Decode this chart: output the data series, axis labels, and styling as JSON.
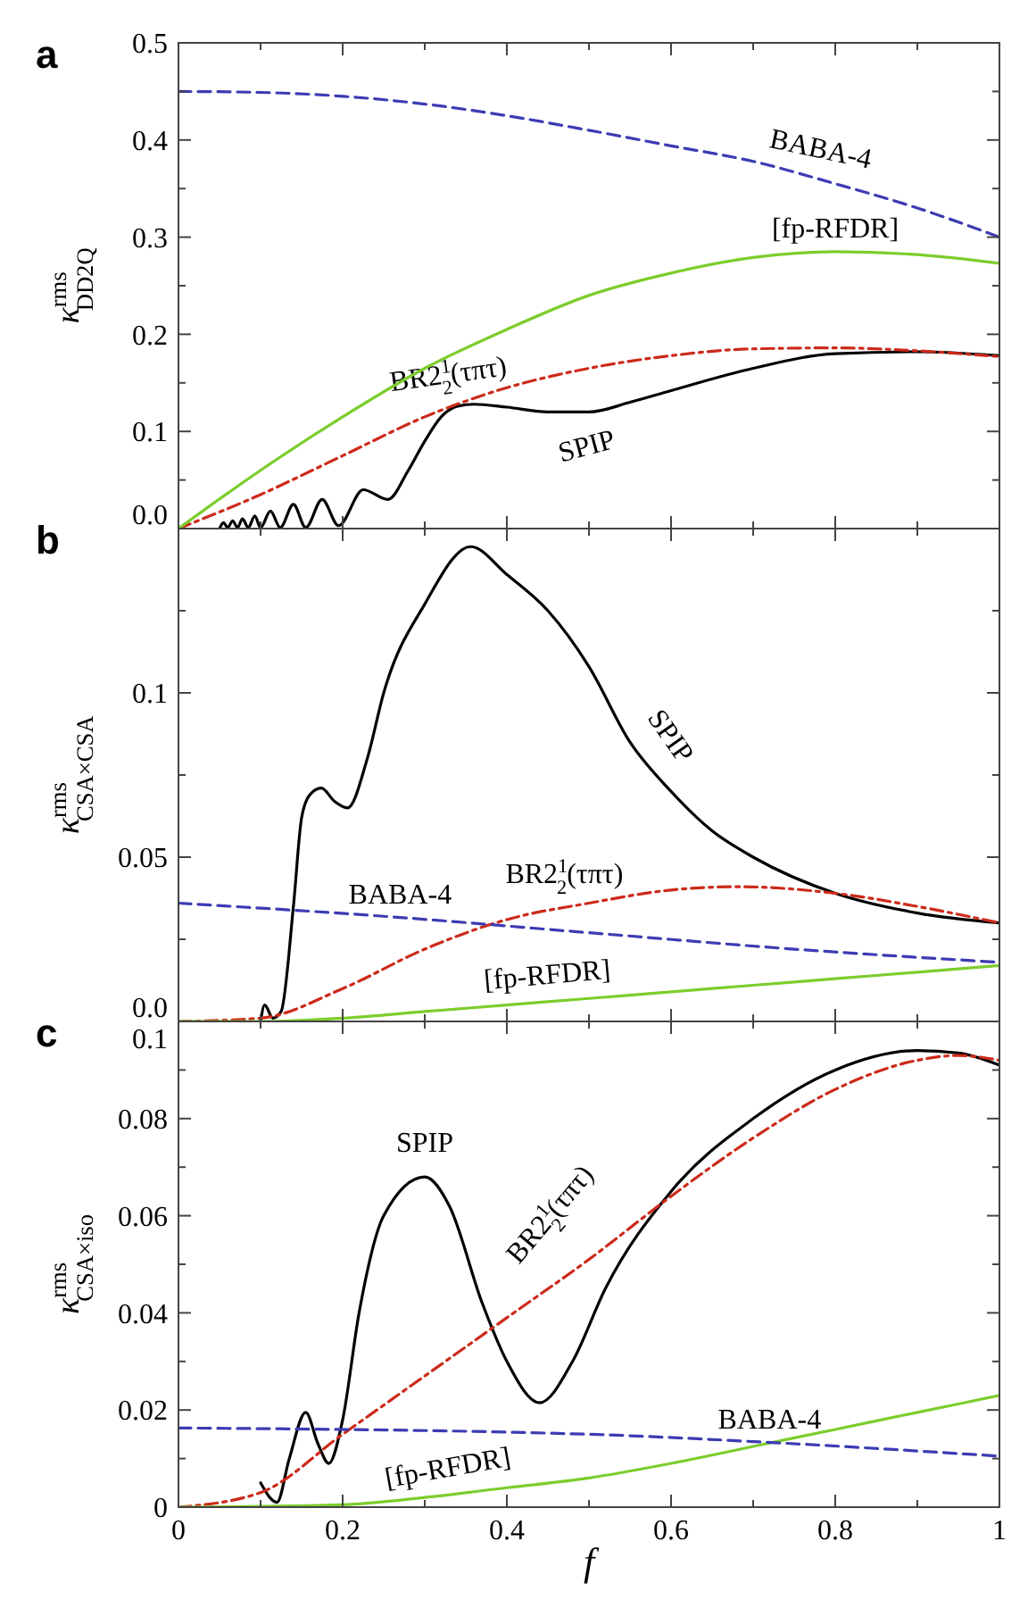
{
  "chart_data": [
    {
      "type": "line",
      "title": "a",
      "ylabel": "κ$^{rms}$$_{DD2Q}$",
      "xlim": [
        0,
        1
      ],
      "ylim": [
        0,
        0.5
      ],
      "tick_labels": "y",
      "xticks": [
        0,
        {
          "value": 0.1,
          "label": null
        },
        0.2,
        {
          "value": 0.3,
          "label": null
        },
        0.4,
        {
          "value": 0.5,
          "label": null
        },
        0.6,
        {
          "value": 0.7,
          "label": null
        },
        0.8,
        {
          "value": 0.9,
          "label": null
        },
        1
      ],
      "yticks": [
        {
          "value": 0,
          "label": "0.0"
        },
        {
          "value": 0.05,
          "label": null
        },
        0.1,
        {
          "value": 0.15,
          "label": null
        },
        0.2,
        {
          "value": 0.25,
          "label": null
        },
        0.3,
        {
          "value": 0.35,
          "label": null
        },
        0.4,
        {
          "value": 0.45,
          "label": null
        },
        0.5
      ],
      "series": [
        {
          "name": "SPIP",
          "color": "#000000",
          "line_style": "solid",
          "x": [
            0.05,
            0.055,
            0.06,
            0.066,
            0.072,
            0.078,
            0.085,
            0.093,
            0.1,
            0.112,
            0.124,
            0.14,
            0.155,
            0.175,
            0.195,
            0.225,
            0.255,
            0.28,
            0.3,
            0.32,
            0.34,
            0.36,
            0.4,
            0.45,
            0.5,
            0.55,
            0.6,
            0.7,
            0.8,
            0.9,
            1
          ],
          "values": [
            0,
            0.006,
            0.001,
            0.008,
            0.001,
            0.01,
            0.001,
            0.013,
            0.001,
            0.018,
            0.001,
            0.025,
            0.001,
            0.03,
            0.003,
            0.04,
            0.03,
            0.06,
            0.09,
            0.115,
            0.126,
            0.128,
            0.125,
            0.12,
            0.12,
            0.13,
            0.142,
            0.165,
            0.18,
            0.182,
            0.178
          ]
        },
        {
          "name": "BR2$^{1}$$_{2}$(τπτ)",
          "color": "#cc2a1a",
          "line_style": "dashdot",
          "x": [
            0,
            0.1,
            0.2,
            0.3,
            0.4,
            0.5,
            0.6,
            0.7,
            0.8,
            0.9,
            1
          ],
          "values": [
            0,
            0.035,
            0.075,
            0.115,
            0.145,
            0.165,
            0.178,
            0.185,
            0.186,
            0.183,
            0.177
          ]
        },
        {
          "name": "[fp-RFDR]",
          "color": "#7ccd2c",
          "line_style": "solid",
          "x": [
            0,
            0.1,
            0.2,
            0.3,
            0.4,
            0.5,
            0.6,
            0.7,
            0.8,
            0.9,
            1
          ],
          "values": [
            0,
            0.06,
            0.115,
            0.165,
            0.205,
            0.24,
            0.263,
            0.279,
            0.285,
            0.282,
            0.273
          ]
        },
        {
          "name": "BABA-4",
          "color": "#3c3cb4",
          "line_style": "dashed",
          "x": [
            0,
            0.1,
            0.2,
            0.3,
            0.4,
            0.5,
            0.6,
            0.7,
            0.8,
            0.9,
            1
          ],
          "values": [
            0.45,
            0.449,
            0.445,
            0.437,
            0.425,
            0.41,
            0.394,
            0.378,
            0.355,
            0.33,
            0.3
          ]
        }
      ]
    },
    {
      "type": "line",
      "title": "b",
      "ylabel": "κ$^{rms}$$_{CSA×CSA}$",
      "xlim": [
        0,
        1
      ],
      "ylim": [
        0,
        0.15
      ],
      "tick_labels": "y",
      "xticks": [
        0,
        {
          "value": 0.1,
          "label": null
        },
        0.2,
        {
          "value": 0.3,
          "label": null
        },
        0.4,
        {
          "value": 0.5,
          "label": null
        },
        0.6,
        {
          "value": 0.7,
          "label": null
        },
        0.8,
        {
          "value": 0.9,
          "label": null
        },
        1
      ],
      "yticks": [
        {
          "value": 0,
          "label": "0.0"
        },
        {
          "value": 0.025,
          "label": null
        },
        0.05,
        {
          "value": 0.075,
          "label": null
        },
        0.1,
        {
          "value": 0.125,
          "label": null
        }
      ],
      "series": [
        {
          "name": "SPIP",
          "color": "#000000",
          "line_style": "solid",
          "x": [
            0.1,
            0.105,
            0.115,
            0.125,
            0.14,
            0.15,
            0.16,
            0.174,
            0.19,
            0.206,
            0.23,
            0.25,
            0.3,
            0.356,
            0.4,
            0.45,
            0.5,
            0.55,
            0.6,
            0.65,
            0.7,
            0.8,
            0.9,
            1
          ],
          "values": [
            0,
            0.005,
            0.001,
            0.003,
            0.035,
            0.062,
            0.069,
            0.071,
            0.067,
            0.065,
            0.08,
            0.1,
            0.127,
            0.1445,
            0.136,
            0.125,
            0.108,
            0.085,
            0.07,
            0.058,
            0.05,
            0.039,
            0.033,
            0.03
          ]
        },
        {
          "name": "BR2$^{1}$$_{2}$(τπτ)",
          "color": "#cc2a1a",
          "line_style": "dashdot",
          "x": [
            0,
            0.1,
            0.2,
            0.3,
            0.4,
            0.5,
            0.6,
            0.68,
            0.8,
            0.9,
            1
          ],
          "values": [
            0,
            0.001,
            0.01,
            0.022,
            0.031,
            0.036,
            0.04,
            0.041,
            0.039,
            0.035,
            0.03
          ]
        },
        {
          "name": "[fp-RFDR]",
          "color": "#7ccd2c",
          "line_style": "solid",
          "x": [
            0,
            0.1,
            0.2,
            0.3,
            0.4,
            0.5,
            0.6,
            0.7,
            0.8,
            0.9,
            1
          ],
          "values": [
            0,
            0,
            0.001,
            0.003,
            0.005,
            0.007,
            0.009,
            0.011,
            0.013,
            0.015,
            0.017
          ]
        },
        {
          "name": "BABA-4",
          "color": "#3c3cb4",
          "line_style": "dashed",
          "x": [
            0,
            0.25,
            0.5,
            0.75,
            1
          ],
          "values": [
            0.036,
            0.032,
            0.027,
            0.022,
            0.018
          ]
        }
      ]
    },
    {
      "type": "line",
      "title": "c",
      "ylabel": "κ$^{rms}$$_{CSA×iso}$",
      "xlabel": "f",
      "xlim": [
        0,
        1
      ],
      "ylim": [
        0,
        0.1
      ],
      "xticks": [
        0,
        {
          "value": 0.1,
          "label": null
        },
        0.2,
        {
          "value": 0.3,
          "label": null
        },
        0.4,
        {
          "value": 0.5,
          "label": null
        },
        0.6,
        {
          "value": 0.7,
          "label": null
        },
        0.8,
        {
          "value": 0.9,
          "label": null
        },
        1
      ],
      "yticks": [
        0,
        {
          "value": 0.01,
          "label": null
        },
        0.02,
        {
          "value": 0.03,
          "label": null
        },
        0.04,
        {
          "value": 0.05,
          "label": null
        },
        0.06,
        {
          "value": 0.07,
          "label": null
        },
        0.08,
        {
          "value": 0.09,
          "label": null
        },
        0.1
      ],
      "series": [
        {
          "name": "SPIP",
          "color": "#000000",
          "line_style": "solid",
          "x": [
            0.1,
            0.12,
            0.135,
            0.155,
            0.17,
            0.183,
            0.2,
            0.22,
            0.25,
            0.3,
            0.33,
            0.37,
            0.4,
            0.44,
            0.48,
            0.52,
            0.6,
            0.7,
            0.8,
            0.9,
            0.95,
            1
          ],
          "values": [
            0.005,
            0.001,
            0.01,
            0.0195,
            0.013,
            0.009,
            0.018,
            0.04,
            0.06,
            0.068,
            0.062,
            0.042,
            0.03,
            0.0215,
            0.03,
            0.045,
            0.065,
            0.08,
            0.09,
            0.094,
            0.0935,
            0.091
          ]
        },
        {
          "name": "BR2$^{1}$$_{2}$(τπτ)",
          "color": "#cc2a1a",
          "line_style": "dashdot",
          "x": [
            0,
            0.1,
            0.2,
            0.3,
            0.4,
            0.5,
            0.6,
            0.7,
            0.8,
            0.9,
            0.95,
            1
          ],
          "values": [
            0,
            0.003,
            0.015,
            0.027,
            0.039,
            0.051,
            0.064,
            0.076,
            0.086,
            0.092,
            0.093,
            0.092
          ]
        },
        {
          "name": "[fp-RFDR]",
          "color": "#7ccd2c",
          "line_style": "solid",
          "x": [
            0,
            0.2,
            0.3,
            0.4,
            0.5,
            0.6,
            0.7,
            0.8,
            0.9,
            1
          ],
          "values": [
            0,
            0.0005,
            0.002,
            0.004,
            0.006,
            0.009,
            0.0125,
            0.016,
            0.0195,
            0.023
          ]
        },
        {
          "name": "BABA-4",
          "color": "#3c3cb4",
          "line_style": "dashed",
          "x": [
            0,
            0.5,
            0.7,
            1
          ],
          "values": [
            0.0163,
            0.015,
            0.0135,
            0.0105
          ]
        }
      ]
    }
  ]
}
